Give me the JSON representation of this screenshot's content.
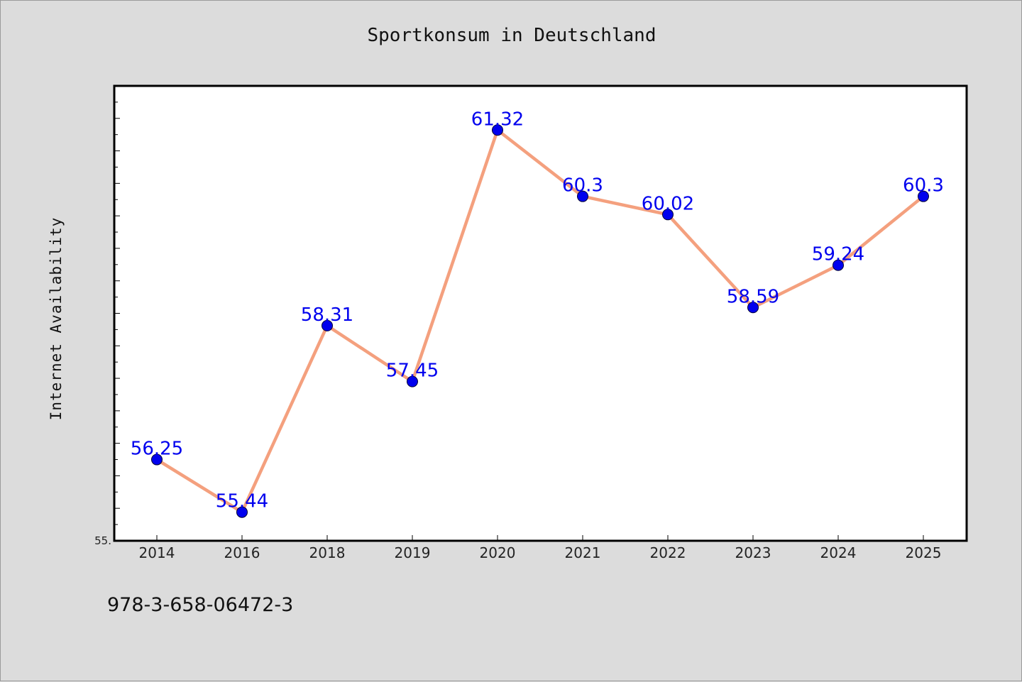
{
  "chart_data": {
    "type": "line",
    "title": "Sportkonsum in Deutschland",
    "xlabel": "",
    "ylabel": "Internet Availability",
    "categories": [
      "2014",
      "2016",
      "2018",
      "2019",
      "2020",
      "2021",
      "2022",
      "2023",
      "2024",
      "2025"
    ],
    "series": [
      {
        "values": [
          56.25,
          55.44,
          58.31,
          57.45,
          61.32,
          60.3,
          60.02,
          58.59,
          59.24,
          60.3
        ],
        "data_labels": [
          "56.25",
          "55.44",
          "58.31",
          "57.45",
          "61.32",
          "60.3",
          "60.02",
          "58.59",
          "59.24",
          "60.3"
        ],
        "line_color": "#f4a07e",
        "marker_color": "#0000ee",
        "label_color": "#0000ee"
      }
    ],
    "ylim": [
      55.0,
      62.0
    ],
    "y_tick_label": "55.",
    "grid": false,
    "legend": "none"
  },
  "footer_text": "978-3-658-06472-3",
  "colors": {
    "background": "#dcdcdc",
    "plot_background": "#ffffff",
    "axis": "#000000"
  }
}
